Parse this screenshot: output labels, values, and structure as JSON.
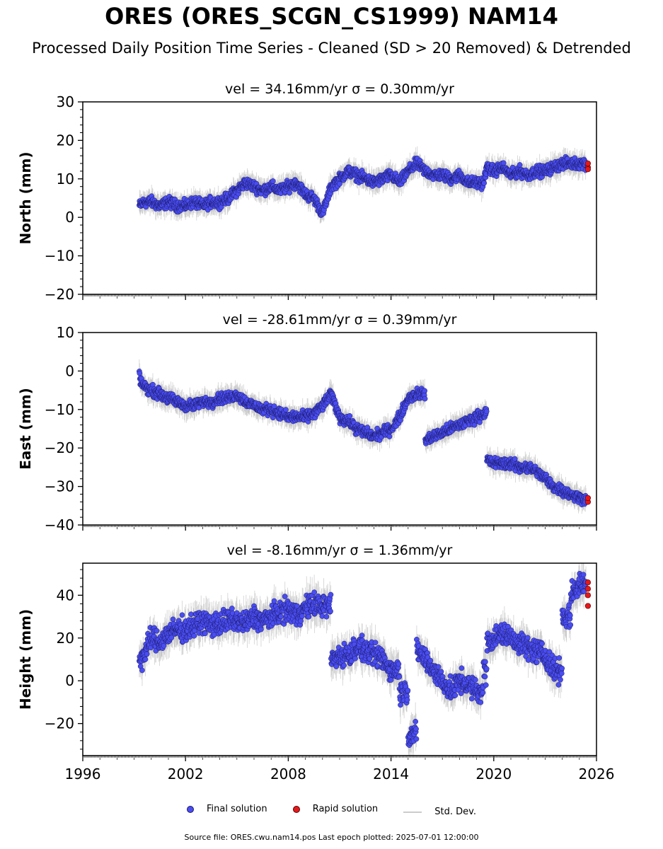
{
  "title": "ORES (ORES_SCGN_CS1999) NAM14",
  "subtitle": "Processed Daily Position Time Series - Cleaned (SD > 20 Removed) & Detrended",
  "legend": {
    "final": "Final solution",
    "rapid": "Rapid solution",
    "std": "Std. Dev."
  },
  "source": "Source file: ORES.cwu.nam14.pos  Last epoch plotted: 2025-07-01 12:00:00",
  "colors": {
    "final": "#4a4df0",
    "final_edge": "#1a1a6a",
    "rapid": "#e31a1c",
    "std": "#bbbbbb"
  },
  "chart_data": [
    {
      "type": "scatter",
      "title": "vel = 34.16mm/yr   σ = 0.30mm/yr",
      "ylabel": "North (mm)",
      "xlim": [
        1996,
        2026
      ],
      "ylim": [
        -20,
        30
      ],
      "yticks": [
        -20,
        -10,
        0,
        10,
        20,
        30
      ],
      "xticks": [],
      "series": [
        {
          "id": "final",
          "x": [
            1999.3,
            1999.6,
            2000.0,
            2000.5,
            2001.0,
            2001.5,
            2002.0,
            2002.5,
            2003.0,
            2003.5,
            2004.0,
            2004.5,
            2005.0,
            2005.5,
            2006.0,
            2006.5,
            2007.0,
            2007.5,
            2008.0,
            2008.5,
            2009.0,
            2009.5,
            2010.0,
            2010.5,
            2011.0,
            2011.5,
            2012.0,
            2012.5,
            2013.0,
            2013.5,
            2014.0,
            2014.5,
            2015.0,
            2015.5,
            2016.0,
            2016.5,
            2017.0,
            2017.5,
            2018.0,
            2018.5,
            2019.0,
            2019.4,
            2019.6,
            2020.0,
            2020.5,
            2021.0,
            2021.5,
            2022.0,
            2022.5,
            2023.0,
            2023.5,
            2024.0,
            2024.5,
            2025.0,
            2025.4
          ],
          "y": [
            3,
            4,
            4,
            3,
            4,
            3,
            3,
            4,
            3,
            4,
            4,
            5,
            7,
            9,
            8,
            7,
            8,
            7,
            8,
            9,
            6,
            5,
            1,
            8,
            10,
            12,
            11,
            10,
            9,
            10,
            11,
            9,
            12,
            14,
            12,
            11,
            11,
            10,
            11,
            9,
            9,
            9,
            13,
            12,
            13,
            11,
            12,
            11,
            12,
            12,
            13,
            14,
            14,
            14,
            14
          ]
        },
        {
          "id": "rapid",
          "x": [
            2025.5,
            2025.5,
            2025.5
          ],
          "y": [
            13,
            14,
            12.5
          ]
        }
      ]
    },
    {
      "type": "scatter",
      "title": "vel = -28.61mm/yr   σ = 0.39mm/yr",
      "ylabel": "East (mm)",
      "xlim": [
        1996,
        2026
      ],
      "ylim": [
        -40,
        10
      ],
      "yticks": [
        -40,
        -30,
        -20,
        -10,
        0,
        10
      ],
      "xticks": [],
      "series": [
        {
          "id": "final",
          "x": [
            1999.3,
            1999.6,
            2000.0,
            2000.5,
            2001.0,
            2001.5,
            2002.0,
            2002.5,
            2003.0,
            2003.5,
            2004.0,
            2004.5,
            2005.0,
            2005.5,
            2006.0,
            2006.5,
            2007.0,
            2007.5,
            2008.0,
            2008.5,
            2009.0,
            2009.5,
            2010.0,
            2010.5,
            2011.0,
            2011.5,
            2012.0,
            2012.5,
            2013.0,
            2013.5,
            2014.0,
            2014.5,
            2015.0,
            2015.5,
            2016.0,
            2016.5,
            2017.0,
            2017.5,
            2018.0,
            2018.5,
            2019.0,
            2019.4,
            2019.6,
            2020.0,
            2020.5,
            2021.0,
            2021.5,
            2022.0,
            2022.5,
            2023.0,
            2023.5,
            2024.0,
            2024.5,
            2025.0,
            2025.4
          ],
          "y": [
            -2,
            -4,
            -5,
            -6,
            -7,
            -8,
            -9,
            -9,
            -8,
            -8,
            -7,
            -7,
            -6,
            -8,
            -9,
            -10,
            -10,
            -11,
            -12,
            -12,
            -12,
            -11,
            -9,
            -6,
            -12,
            -13,
            -15,
            -16,
            -17,
            -16,
            -15,
            -12,
            -7,
            -6,
            -18,
            -17,
            -16,
            -15,
            -14,
            -13,
            -12,
            -11,
            -23,
            -24,
            -24,
            -24,
            -25,
            -25,
            -26,
            -28,
            -30,
            -31,
            -32,
            -33,
            -33
          ]
        },
        {
          "id": "rapid",
          "x": [
            2025.5,
            2025.5
          ],
          "y": [
            -34,
            -33
          ]
        }
      ]
    },
    {
      "type": "scatter",
      "title": "vel = -8.16mm/yr   σ = 1.36mm/yr",
      "ylabel": "Height (mm)",
      "xlim": [
        1996,
        2026
      ],
      "ylim": [
        -35,
        55
      ],
      "yticks": [
        -20,
        0,
        20,
        40
      ],
      "xticks": [
        1996,
        2002,
        2008,
        2014,
        2020,
        2026
      ],
      "series": [
        {
          "id": "final",
          "x": [
            1999.3,
            1999.6,
            2000.0,
            2000.5,
            2001.0,
            2001.5,
            2002.0,
            2002.5,
            2003.0,
            2003.5,
            2004.0,
            2004.5,
            2005.0,
            2005.5,
            2006.0,
            2006.5,
            2007.0,
            2007.5,
            2008.0,
            2008.5,
            2009.0,
            2009.5,
            2010.0,
            2010.5,
            2011.0,
            2011.5,
            2012.0,
            2012.5,
            2013.0,
            2013.5,
            2014.0,
            2014.5,
            2015.0,
            2015.5,
            2016.0,
            2016.5,
            2017.0,
            2017.5,
            2018.0,
            2018.5,
            2019.0,
            2019.4,
            2019.6,
            2020.0,
            2020.5,
            2021.0,
            2021.5,
            2022.0,
            2022.5,
            2023.0,
            2023.5,
            2024.0,
            2024.5,
            2025.0,
            2025.4
          ],
          "y": [
            10,
            12,
            20,
            18,
            22,
            24,
            24,
            26,
            28,
            26,
            27,
            28,
            28,
            27,
            30,
            28,
            30,
            32,
            33,
            31,
            34,
            36,
            35,
            10,
            12,
            12,
            16,
            14,
            12,
            10,
            5,
            -5,
            -25,
            15,
            10,
            5,
            0,
            -5,
            0,
            -2,
            -5,
            5,
            18,
            20,
            22,
            20,
            18,
            15,
            14,
            12,
            5,
            30,
            40,
            45,
            45
          ]
        },
        {
          "id": "rapid",
          "x": [
            2025.5,
            2025.5,
            2025.5,
            2025.5
          ],
          "y": [
            46,
            43,
            40,
            35
          ]
        }
      ]
    }
  ]
}
